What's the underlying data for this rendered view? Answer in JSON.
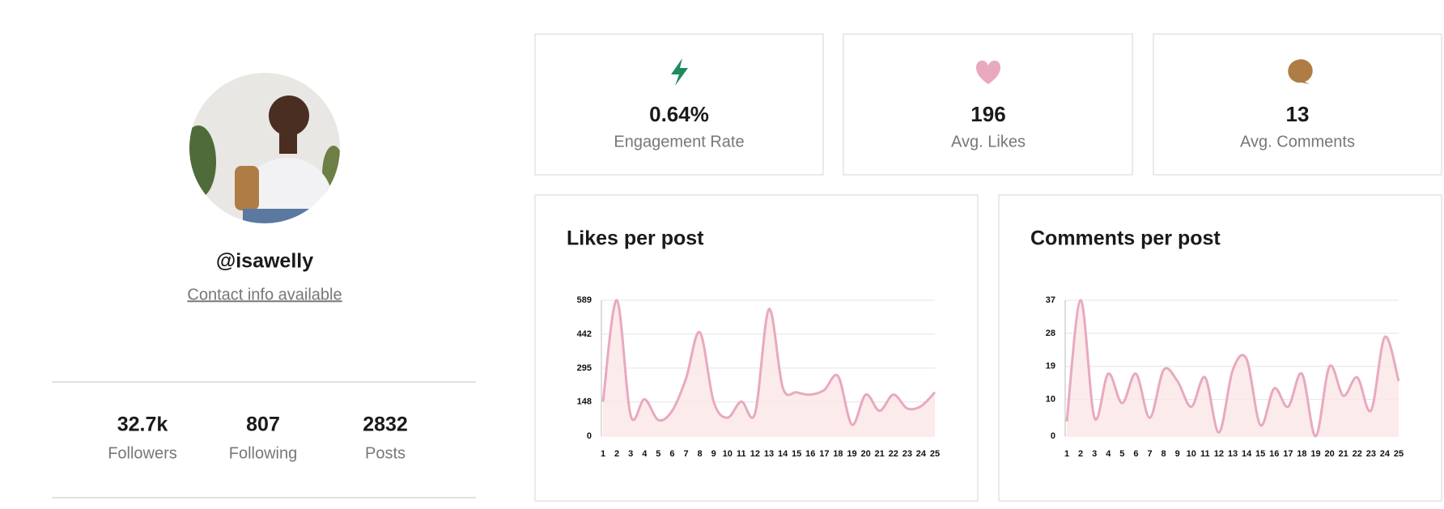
{
  "profile": {
    "handle": "@isawelly",
    "contact": "Contact info available",
    "stats": [
      {
        "value": "32.7k",
        "label": "Followers"
      },
      {
        "value": "807",
        "label": "Following"
      },
      {
        "value": "2832",
        "label": "Posts"
      }
    ]
  },
  "metrics": [
    {
      "value": "0.64%",
      "label": "Engagement Rate"
    },
    {
      "value": "196",
      "label": "Avg. Likes"
    },
    {
      "value": "13",
      "label": "Avg. Comments"
    }
  ],
  "chart_data": [
    {
      "type": "line",
      "title": "Likes per post",
      "color": "#e8a9bf",
      "x": [
        1,
        2,
        3,
        4,
        5,
        6,
        7,
        8,
        9,
        10,
        11,
        12,
        13,
        14,
        15,
        16,
        17,
        18,
        19,
        20,
        21,
        22,
        23,
        24,
        25
      ],
      "values": [
        150,
        589,
        90,
        160,
        70,
        110,
        250,
        450,
        150,
        80,
        150,
        100,
        550,
        210,
        190,
        180,
        200,
        260,
        50,
        180,
        110,
        180,
        120,
        130,
        190
      ],
      "xlim": [
        1,
        25
      ],
      "ylim": [
        0,
        589
      ],
      "yticks": [
        0,
        148,
        295,
        442,
        589
      ],
      "grid": true
    },
    {
      "type": "line",
      "title": "Comments per post",
      "color": "#e8a9bf",
      "x": [
        1,
        2,
        3,
        4,
        5,
        6,
        7,
        8,
        9,
        10,
        11,
        12,
        13,
        14,
        15,
        16,
        17,
        18,
        19,
        20,
        21,
        22,
        23,
        24,
        25
      ],
      "values": [
        4,
        37,
        5,
        17,
        9,
        17,
        5,
        18,
        15,
        8,
        16,
        1,
        18,
        21,
        3,
        13,
        8,
        17,
        0,
        19,
        11,
        16,
        7,
        27,
        15
      ],
      "xlim": [
        1,
        25
      ],
      "ylim": [
        0,
        37
      ],
      "yticks": [
        0,
        10,
        19,
        28,
        37
      ],
      "grid": true
    }
  ]
}
